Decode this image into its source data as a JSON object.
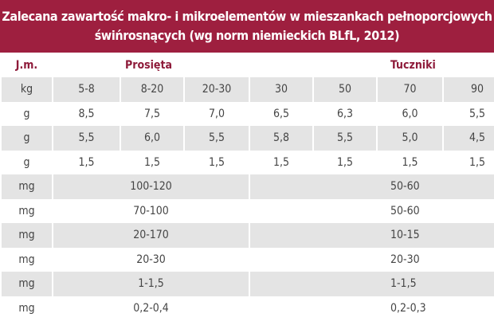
{
  "header": {
    "title_lines": [
      "Zalecana zawartość makro- i mikroelementów w mieszankach pełnoporcjowych",
      "świńrosnących (wg norm niemieckich BLfL, 2012)"
    ]
  },
  "table": {
    "head": [
      "J.m.",
      "Prosięta",
      "Tuczniki"
    ],
    "rows": [
      [
        "kg",
        "5-8",
        "8-20",
        "20-30",
        "30",
        "50",
        "70",
        "90"
      ],
      [
        "g",
        "8,5",
        "7,5",
        "7,0",
        "6,5",
        "6,3",
        "6,0",
        "5,5"
      ],
      [
        "g",
        "5,5",
        "6,0",
        "5,5",
        "5,8",
        "5,5",
        "5,0",
        "4,5"
      ],
      [
        "g",
        "1,5",
        "1,5",
        "1,5",
        "1,5",
        "1,5",
        "1,5",
        "1,5"
      ],
      [
        "mg",
        "100-120",
        "50-60"
      ],
      [
        "mg",
        "70-100",
        "50-60"
      ],
      [
        "mg",
        "20-170",
        "10-15"
      ],
      [
        "mg",
        "20-30",
        "20-30"
      ],
      [
        "mg",
        "1-1,5",
        "1-1,5"
      ],
      [
        "mg",
        "0,2-0,4",
        "0,2-0,3"
      ]
    ]
  }
}
